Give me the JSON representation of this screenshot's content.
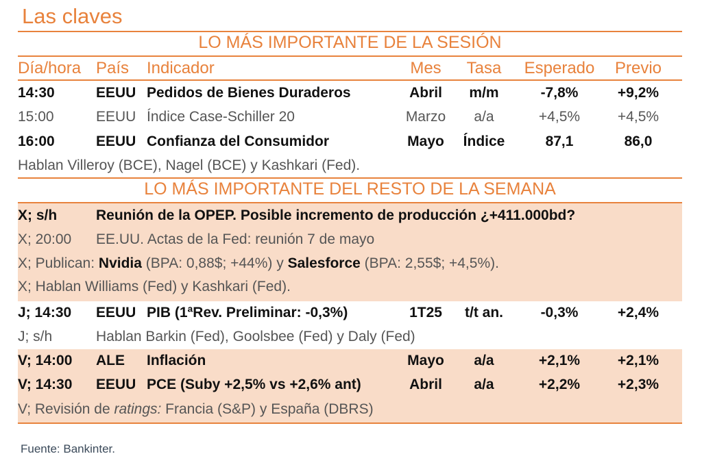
{
  "title": "Las claves",
  "section1": "LO MÁS IMPORTANTE DE LA SESIÓN",
  "headers": {
    "time": "Día/hora",
    "country": "País",
    "indicator": "Indicador",
    "month": "Mes",
    "rate": "Tasa",
    "expected": "Esperado",
    "previous": "Previo"
  },
  "session_rows": [
    {
      "time": "14:30",
      "country": "EEUU",
      "indicator": "Pedidos de Bienes Duraderos",
      "month": "Abril",
      "rate": "m/m",
      "expected": "-7,8%",
      "previous": "+9,2%"
    },
    {
      "time": "15:00",
      "country": "EEUU",
      "indicator": "Índice Case-Schiller 20",
      "month": "Marzo",
      "rate": "a/a",
      "expected": "+4,5%",
      "previous": "+4,5%"
    },
    {
      "time": "16:00",
      "country": "EEUU",
      "indicator": "Confianza del Consumidor",
      "month": "Mayo",
      "rate": "Índice",
      "expected": "87,1",
      "previous": "86,0"
    }
  ],
  "session_note": "Hablan Villeroy (BCE), Nagel (BCE) y Kashkari (Fed).",
  "section2": "LO MÁS IMPORTANTE DEL RESTO DE LA SEMANA",
  "week": {
    "opep": {
      "time": "X; s/h",
      "text": "Reunión de la OPEP. Posible incremento de producción ¿+411.000bd?"
    },
    "fed_minutes": {
      "time": "X; 20:00",
      "text": "EE.UU. Actas de la Fed: reunión 7 de mayo"
    },
    "earnings": {
      "prefix": "X; Publican: ",
      "c1": "Nvidia",
      "d1": " (BPA: 0,88$; +44%) y ",
      "c2": "Salesforce",
      "d2": " (BPA: 2,55$; +4,5%)."
    },
    "x_speakers": "X; Hablan Williams (Fed) y Kashkari (Fed).",
    "pib": {
      "time": "J; 14:30",
      "country": "EEUU",
      "indicator": "PIB (1ªRev. Preliminar: -0,3%)",
      "month": "1T25",
      "rate": "t/t an.",
      "expected": "-0,3%",
      "previous": "+2,4%"
    },
    "j_speakers": {
      "time": "J; s/h",
      "text": "Hablan Barkin (Fed), Goolsbee (Fed) y Daly (Fed)"
    },
    "inflation": {
      "time": "V; 14:00",
      "country": "ALE",
      "indicator": "Inflación",
      "month": "Mayo",
      "rate": "a/a",
      "expected": "+2,1%",
      "previous": "+2,1%"
    },
    "pce": {
      "time": "V; 14:30",
      "country": "EEUU",
      "indicator": "PCE (Suby +2,5% vs +2,6% ant)",
      "month": "Abril",
      "rate": "a/a",
      "expected": "+2,2%",
      "previous": "+2,3%"
    },
    "ratings": {
      "prefix": "V; Revisión de ",
      "italic": "ratings:",
      "rest": " Francia (S&P) y España (DBRS)"
    }
  },
  "source": "Fuente: Bankinter.",
  "colors": {
    "accent": "#E8823C",
    "highlight": "#F9DCC8"
  }
}
